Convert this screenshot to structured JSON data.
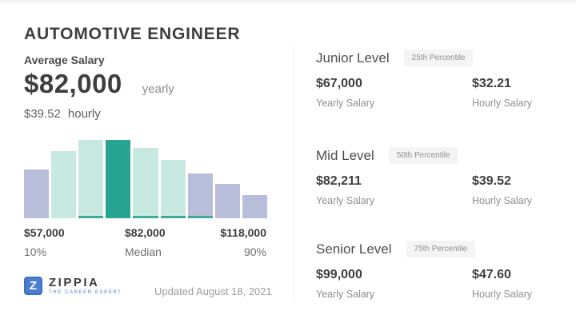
{
  "header": {
    "title": "AUTOMOTIVE ENGINEER"
  },
  "average_salary": {
    "label": "Average Salary",
    "yearly_amount": "$82,000",
    "yearly_unit": "yearly",
    "hourly_amount": "$39.52",
    "hourly_unit": "hourly"
  },
  "chart_data": {
    "type": "bar",
    "description": "Salary distribution histogram for Automotive Engineer",
    "ylim": [
      0,
      100
    ],
    "grid": false,
    "legend": false,
    "bars": [
      {
        "relative_height": 62,
        "color": "purple",
        "strip": false
      },
      {
        "relative_height": 86,
        "color": "teal",
        "strip": false
      },
      {
        "relative_height": 100,
        "color": "teal",
        "strip": true
      },
      {
        "relative_height": 100,
        "color": "median",
        "strip": false
      },
      {
        "relative_height": 90,
        "color": "teal",
        "strip": true
      },
      {
        "relative_height": 74,
        "color": "teal",
        "strip": true
      },
      {
        "relative_height": 57,
        "color": "purple",
        "strip": true
      },
      {
        "relative_height": 44,
        "color": "purple",
        "strip": false
      },
      {
        "relative_height": 30,
        "color": "purple",
        "strip": false
      }
    ],
    "x_markers": [
      {
        "value": "$57,000",
        "label": "10%"
      },
      {
        "value": "$82,000",
        "label": "Median"
      },
      {
        "value": "$118,000",
        "label": "90%"
      }
    ]
  },
  "levels": [
    {
      "name": "Junior Level",
      "percentile": "25th Percentile",
      "yearly_amount": "$67,000",
      "yearly_label": "Yearly Salary",
      "hourly_amount": "$32.21",
      "hourly_label": "Hourly Salary"
    },
    {
      "name": "Mid Level",
      "percentile": "50th Percentile",
      "yearly_amount": "$82,211",
      "yearly_label": "Yearly Salary",
      "hourly_amount": "$39.52",
      "hourly_label": "Hourly Salary"
    },
    {
      "name": "Senior Level",
      "percentile": "75th Percentile",
      "yearly_amount": "$99,000",
      "yearly_label": "Yearly Salary",
      "hourly_amount": "$47.60",
      "hourly_label": "Hourly Salary"
    }
  ],
  "footer": {
    "updated": "Updated August 18, 2021",
    "logo": {
      "mark": "Z",
      "brand": "ZIPPIA",
      "tagline": "THE CAREER EXPERT"
    }
  },
  "colors": {
    "purple": "#b8bdd9",
    "teal": "#c8e9e1",
    "median": "#27a492",
    "strip": "#3fa99c",
    "brand_blue": "#4a7fd0",
    "badge_bg": "#f4f4f4"
  }
}
